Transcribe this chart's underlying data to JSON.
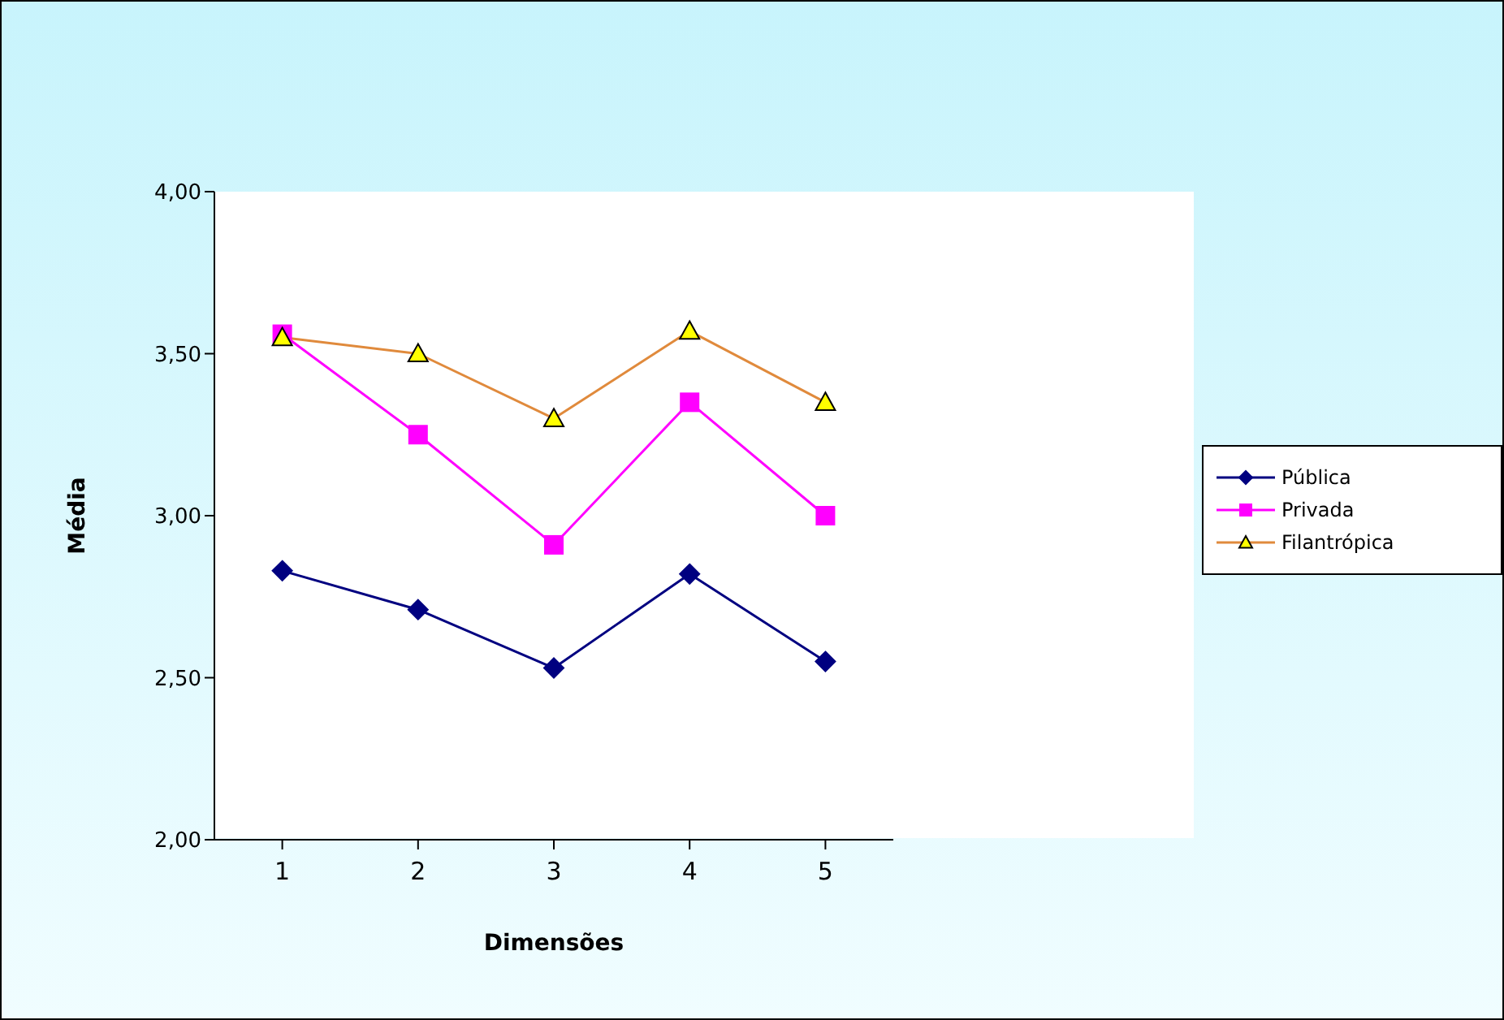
{
  "chart_data": {
    "type": "line",
    "xlabel": "Dimensões",
    "ylabel": "Média",
    "categories": [
      "1",
      "2",
      "3",
      "4",
      "5"
    ],
    "ylim": [
      2,
      4
    ],
    "yticks": [
      {
        "value": 2,
        "label": "2,00"
      },
      {
        "value": 2.5,
        "label": "2,50"
      },
      {
        "value": 3,
        "label": "3,00"
      },
      {
        "value": 3.5,
        "label": "3,50"
      },
      {
        "value": 4,
        "label": "4,00"
      }
    ],
    "grid": false,
    "legend": "right",
    "series": [
      {
        "name": "Pública",
        "color": "#000080",
        "marker": "diamond",
        "values": [
          2.83,
          2.71,
          2.53,
          2.82,
          2.55
        ]
      },
      {
        "name": "Privada",
        "color": "#ff00ff",
        "marker": "square",
        "values": [
          3.56,
          3.25,
          2.91,
          3.35,
          3.0
        ]
      },
      {
        "name": "Filantrópica",
        "color": "#e08a3c",
        "marker": "triangle",
        "values": [
          3.55,
          3.5,
          3.3,
          3.57,
          3.35
        ]
      }
    ]
  }
}
